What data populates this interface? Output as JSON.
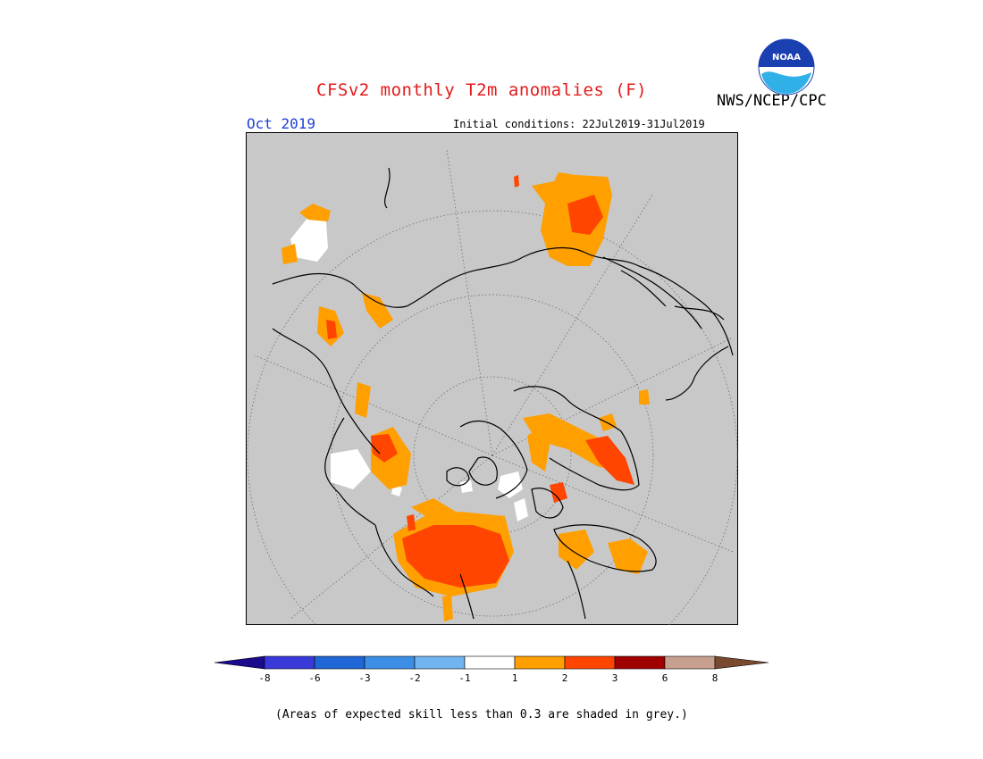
{
  "title": "CFSv2 monthly T2m anomalies (F)",
  "agency": "NWS/NCEP/CPC",
  "logo_text": "NOAA",
  "period_label": "Oct 2019",
  "initial_conditions": "Initial conditions: 22Jul2019-31Jul2019",
  "footnote": "(Areas of expected skill less than 0.3 are shaded in grey.)",
  "colors": {
    "ocean": "#c8c8c8",
    "title": "#e31a1c",
    "period": "#1f3fd6",
    "bins": [
      "#1a0a8c",
      "#3a3adb",
      "#1f66d6",
      "#3c8ee6",
      "#72b4f0",
      "#ffffff",
      "#ff9f00",
      "#ff4500",
      "#a00000",
      "#c8a090",
      "#7a4a30"
    ]
  },
  "legend": {
    "ticks": [
      "-8",
      "-6",
      "-3",
      "-2",
      "-1",
      "1",
      "2",
      "3",
      "6",
      "8"
    ]
  },
  "map": {
    "projection": "polar stereographic (north pole)",
    "anomaly_regions": [
      {
        "region": "Alaska / Bering",
        "category": "white"
      },
      {
        "region": "Yukon / NW Canada",
        "category": "2"
      },
      {
        "region": "Hudson Bay / central Canada",
        "category": "3"
      },
      {
        "region": "Canadian Archipelago",
        "category": "2"
      },
      {
        "region": "Greenland",
        "category": "3"
      },
      {
        "region": "Scandinavia / NW Russia",
        "category": "3"
      },
      {
        "region": "Eastern Siberia",
        "category": "2"
      },
      {
        "region": "Northern Europe",
        "category": "2"
      }
    ]
  }
}
